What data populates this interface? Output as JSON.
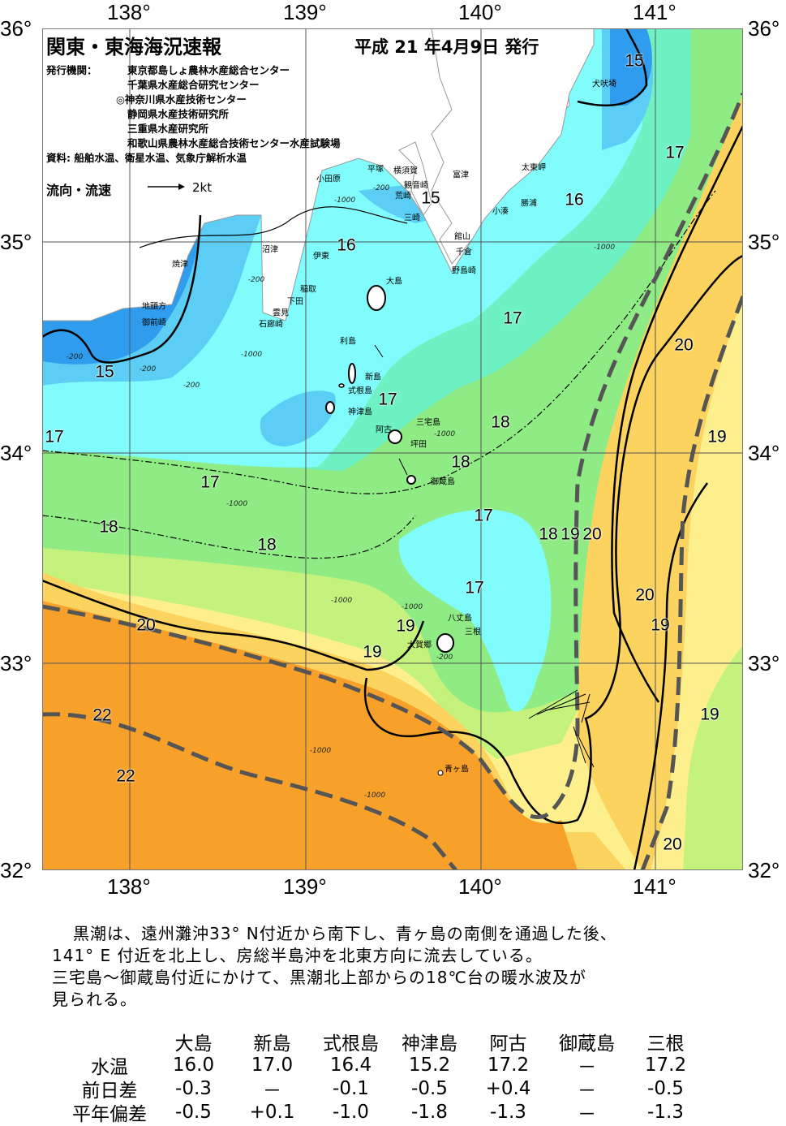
{
  "header": {
    "title": "関東・東海海況速報",
    "date": "平成 21 年4月9日 発行"
  },
  "issuers": {
    "label": "発行機関：",
    "items": [
      "東京都島しょ農林水産総合センター",
      "千葉県水産総合研究センター",
      "◎神奈川県水産技術センター",
      "静岡県水産技術研究所",
      "三重県水産研究所",
      "和歌山県農林水産総合技術センター水産試験場"
    ]
  },
  "sources": "資料: 船舶水温、衛星水温、気象庁解析水温",
  "legend": {
    "label": "流向・流速",
    "speed": "2kt"
  },
  "axes": {
    "lat": [
      "36°",
      "35°",
      "34°",
      "33°",
      "32°"
    ],
    "lon": [
      "138°",
      "139°",
      "140°",
      "141°"
    ]
  },
  "colors": {
    "orange": "#f7a12a",
    "yellow_orange": "#fcd35e",
    "light_yellow": "#fdf08c",
    "light_green": "#c4f27c",
    "green": "#8fec84",
    "aqua": "#6ef2c4",
    "cyan": "#80fcfc",
    "light_blue": "#5ccdf4",
    "blue": "#2f9cee",
    "dark_blue": "#1b6fe6",
    "land": "#ffffff",
    "kuroshio_axis": "#555555"
  },
  "places": [
    "犬吠埼",
    "太東岬",
    "勝浦",
    "小湊",
    "館山",
    "千倉",
    "野島崎",
    "富津",
    "横須賀",
    "観音崎",
    "荒崎",
    "三崎",
    "平塚",
    "小田原",
    "伊東",
    "沼津",
    "焼津",
    "稲取",
    "下田",
    "雲見",
    "石廊崎",
    "地頭方",
    "御前崎",
    "大島",
    "利島",
    "新島",
    "式根島",
    "神津島",
    "三宅島",
    "阿古",
    "坪田",
    "御蔵島",
    "八丈島",
    "三根",
    "大賀郷",
    "青ヶ島"
  ],
  "isotherm_labels": [
    "15",
    "17",
    "16",
    "15",
    "16",
    "17",
    "20",
    "15",
    "17",
    "18",
    "19",
    "18",
    "17",
    "17",
    "18",
    "18",
    "18",
    "19",
    "20",
    "17",
    "20",
    "20",
    "19",
    "19",
    "19",
    "22",
    "19",
    "22",
    "20",
    "17"
  ],
  "depth_labels": [
    "-200",
    "-1000",
    "-200",
    "-1000",
    "-200",
    "-200",
    "-1000",
    "-200",
    "-1000",
    "-1000",
    "-1000",
    "-1000",
    "-200",
    "-1000",
    "-1000"
  ],
  "summary": [
    "黒潮は、遠州灘沖33° N付近から南下し、青ヶ島の南側を通過した後、",
    "141° E 付近を北上し、房総半島沖を北東方向に流去している。",
    "三宅島～御蔵島付近にかけて、黒潮北上部からの18℃台の暖水波及が",
    "見られる。"
  ],
  "table": {
    "columns": [
      "大島",
      "新島",
      "式根島",
      "神津島",
      "阿古",
      "御蔵島",
      "三根"
    ],
    "rows": [
      {
        "label": "水温",
        "values": [
          "16.0",
          "17.0",
          "16.4",
          "15.2",
          "17.2",
          "－",
          "17.2"
        ]
      },
      {
        "label": "前日差",
        "values": [
          "-0.3",
          "－",
          "-0.1",
          "-0.5",
          "+0.4",
          "－",
          "-0.5"
        ]
      },
      {
        "label": "平年偏差",
        "values": [
          "-0.5",
          "+0.1",
          "-1.0",
          "-1.8",
          "-1.3",
          "－",
          "-1.3"
        ]
      }
    ]
  }
}
